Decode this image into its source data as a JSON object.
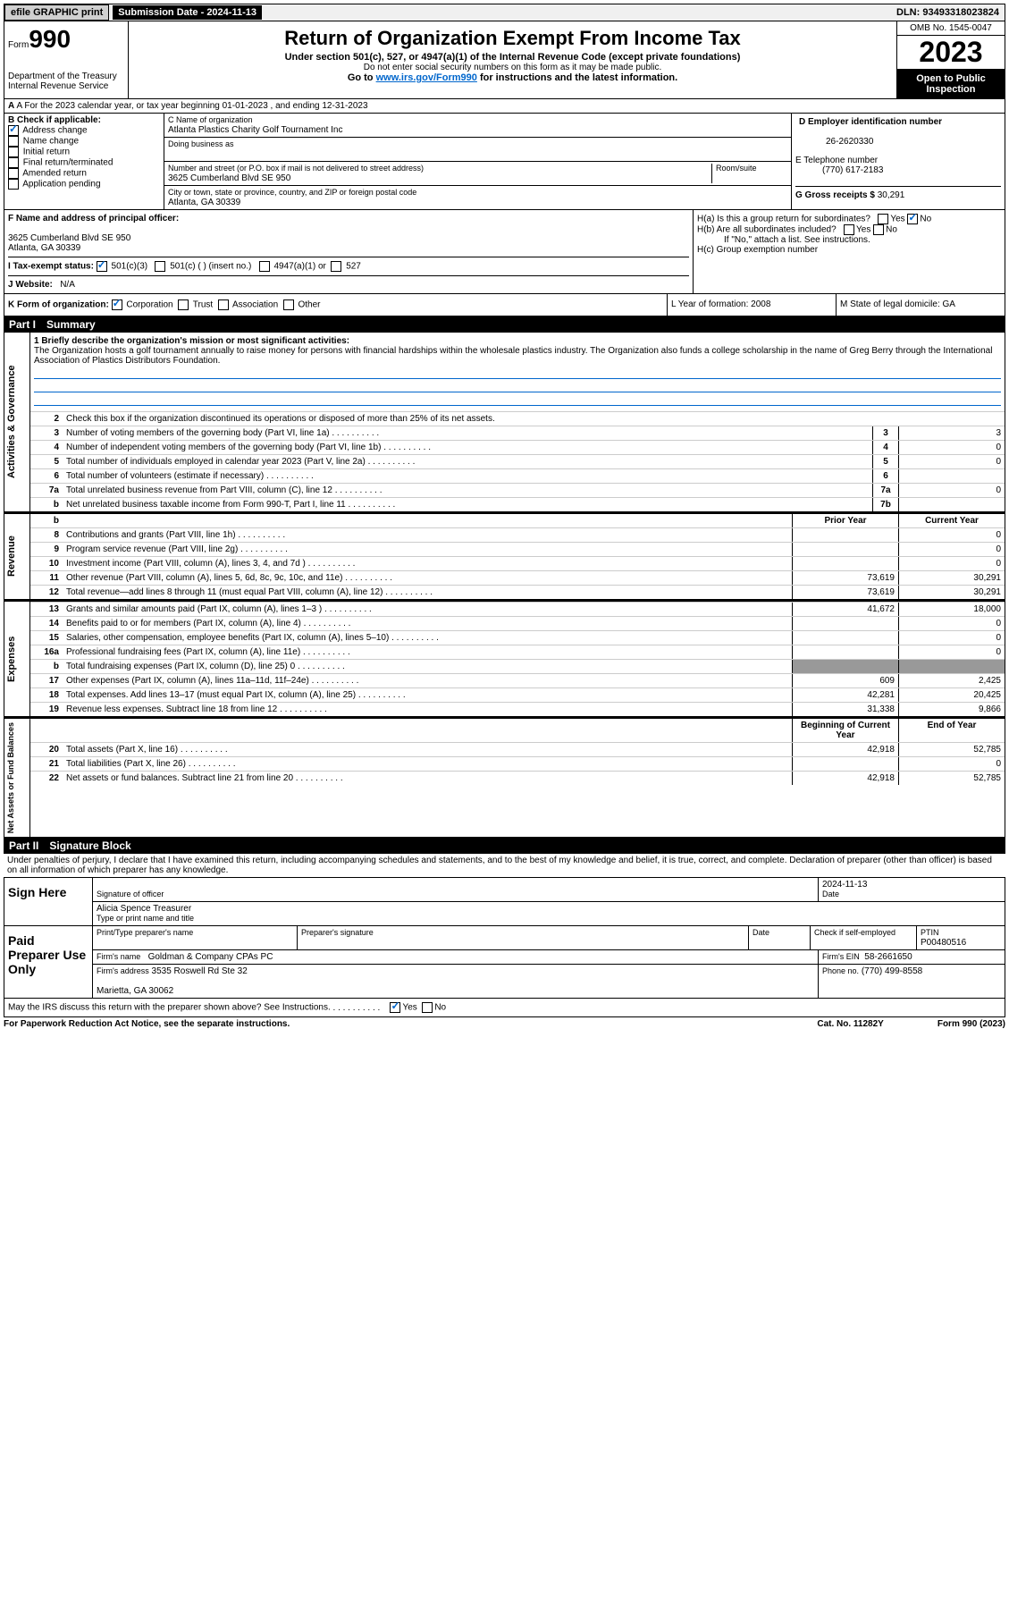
{
  "topbar": {
    "efile": "efile GRAPHIC print",
    "submission": "Submission Date - 2024-11-13",
    "dln": "DLN: 93493318023824"
  },
  "header": {
    "form_prefix": "Form",
    "form_num": "990",
    "title": "Return of Organization Exempt From Income Tax",
    "subtitle": "Under section 501(c), 527, or 4947(a)(1) of the Internal Revenue Code (except private foundations)",
    "note1": "Do not enter social security numbers on this form as it may be made public.",
    "note2": "Go to www.irs.gov/Form990 for instructions and the latest information.",
    "dept": "Department of the Treasury\nInternal Revenue Service",
    "omb": "OMB No. 1545-0047",
    "year": "2023",
    "inspection": "Open to Public Inspection"
  },
  "rowA": "A For the 2023 calendar year, or tax year beginning 01-01-2023   , and ending 12-31-2023",
  "secB": {
    "label": "B Check if applicable:",
    "items": [
      "Address change",
      "Name change",
      "Initial return",
      "Final return/terminated",
      "Amended return",
      "Application pending"
    ],
    "checked": [
      true,
      false,
      false,
      false,
      false,
      false
    ]
  },
  "secC": {
    "name_label": "C Name of organization",
    "name": "Atlanta Plastics Charity Golf Tournament Inc",
    "dba_label": "Doing business as",
    "addr_label": "Number and street (or P.O. box if mail is not delivered to street address)",
    "room_label": "Room/suite",
    "addr": "3625 Cumberland Blvd SE 950",
    "city_label": "City or town, state or province, country, and ZIP or foreign postal code",
    "city": "Atlanta, GA  30339"
  },
  "secD": {
    "ein_label": "D Employer identification number",
    "ein": "26-2620330",
    "phone_label": "E Telephone number",
    "phone": "(770) 617-2183",
    "gross_label": "G Gross receipts $",
    "gross": "30,291"
  },
  "secF": {
    "label": "F Name and address of principal officer:",
    "addr": "3625 Cumberland Blvd SE 950\nAtlanta, GA  30339"
  },
  "secH": {
    "ha": "H(a)  Is this a group return for subordinates?",
    "hb": "H(b)  Are all subordinates included?",
    "hb_note": "If \"No,\" attach a list. See instructions.",
    "hc": "H(c)  Group exemption number"
  },
  "secI": {
    "label": "I   Tax-exempt status:",
    "opts": [
      "501(c)(3)",
      "501(c) (  ) (insert no.)",
      "4947(a)(1) or",
      "527"
    ]
  },
  "secJ": {
    "label": "J   Website:",
    "val": "N/A"
  },
  "secK": {
    "label": "K Form of organization:",
    "opts": [
      "Corporation",
      "Trust",
      "Association",
      "Other"
    ],
    "L": "L Year of formation: 2008",
    "M": "M State of legal domicile: GA"
  },
  "part1": {
    "header": "Part I",
    "title": "Summary",
    "mission_label": "1   Briefly describe the organization's mission or most significant activities:",
    "mission": "The Organization hosts a golf tournament annually to raise money for persons with financial hardships within the wholesale plastics industry. The Organization also funds a college scholarship in the name of Greg Berry through the International Association of Plastics Distributors Foundation.",
    "line2": "Check this box     if the organization discontinued its operations or disposed of more than 25% of its net assets.",
    "lines_gov": [
      {
        "n": "3",
        "d": "Number of voting members of the governing body (Part VI, line 1a)",
        "b": "3",
        "v": "3"
      },
      {
        "n": "4",
        "d": "Number of independent voting members of the governing body (Part VI, line 1b)",
        "b": "4",
        "v": "0"
      },
      {
        "n": "5",
        "d": "Total number of individuals employed in calendar year 2023 (Part V, line 2a)",
        "b": "5",
        "v": "0"
      },
      {
        "n": "6",
        "d": "Total number of volunteers (estimate if necessary)",
        "b": "6",
        "v": ""
      },
      {
        "n": "7a",
        "d": "Total unrelated business revenue from Part VIII, column (C), line 12",
        "b": "7a",
        "v": "0"
      },
      {
        "n": "b",
        "d": "Net unrelated business taxable income from Form 990-T, Part I, line 11",
        "b": "7b",
        "v": ""
      }
    ],
    "col_prior": "Prior Year",
    "col_current": "Current Year",
    "lines_rev": [
      {
        "n": "8",
        "d": "Contributions and grants (Part VIII, line 1h)",
        "p": "",
        "c": "0"
      },
      {
        "n": "9",
        "d": "Program service revenue (Part VIII, line 2g)",
        "p": "",
        "c": "0"
      },
      {
        "n": "10",
        "d": "Investment income (Part VIII, column (A), lines 3, 4, and 7d )",
        "p": "",
        "c": "0"
      },
      {
        "n": "11",
        "d": "Other revenue (Part VIII, column (A), lines 5, 6d, 8c, 9c, 10c, and 11e)",
        "p": "73,619",
        "c": "30,291"
      },
      {
        "n": "12",
        "d": "Total revenue—add lines 8 through 11 (must equal Part VIII, column (A), line 12)",
        "p": "73,619",
        "c": "30,291"
      }
    ],
    "lines_exp": [
      {
        "n": "13",
        "d": "Grants and similar amounts paid (Part IX, column (A), lines 1–3 )",
        "p": "41,672",
        "c": "18,000"
      },
      {
        "n": "14",
        "d": "Benefits paid to or for members (Part IX, column (A), line 4)",
        "p": "",
        "c": "0"
      },
      {
        "n": "15",
        "d": "Salaries, other compensation, employee benefits (Part IX, column (A), lines 5–10)",
        "p": "",
        "c": "0"
      },
      {
        "n": "16a",
        "d": "Professional fundraising fees (Part IX, column (A), line 11e)",
        "p": "",
        "c": "0"
      },
      {
        "n": "b",
        "d": "Total fundraising expenses (Part IX, column (D), line 25) 0",
        "p": "shade",
        "c": "shade"
      },
      {
        "n": "17",
        "d": "Other expenses (Part IX, column (A), lines 11a–11d, 11f–24e)",
        "p": "609",
        "c": "2,425"
      },
      {
        "n": "18",
        "d": "Total expenses. Add lines 13–17 (must equal Part IX, column (A), line 25)",
        "p": "42,281",
        "c": "20,425"
      },
      {
        "n": "19",
        "d": "Revenue less expenses. Subtract line 18 from line 12",
        "p": "31,338",
        "c": "9,866"
      }
    ],
    "col_begin": "Beginning of Current Year",
    "col_end": "End of Year",
    "lines_net": [
      {
        "n": "20",
        "d": "Total assets (Part X, line 16)",
        "p": "42,918",
        "c": "52,785"
      },
      {
        "n": "21",
        "d": "Total liabilities (Part X, line 26)",
        "p": "",
        "c": "0"
      },
      {
        "n": "22",
        "d": "Net assets or fund balances. Subtract line 21 from line 20",
        "p": "42,918",
        "c": "52,785"
      }
    ],
    "vtab_gov": "Activities & Governance",
    "vtab_rev": "Revenue",
    "vtab_exp": "Expenses",
    "vtab_net": "Net Assets or Fund Balances"
  },
  "part2": {
    "header": "Part II",
    "title": "Signature Block",
    "declaration": "Under penalties of perjury, I declare that I have examined this return, including accompanying schedules and statements, and to the best of my knowledge and belief, it is true, correct, and complete. Declaration of preparer (other than officer) is based on all information of which preparer has any knowledge.",
    "sign_here": "Sign Here",
    "sig_officer": "Signature of officer",
    "sig_name": "Alicia Spence  Treasurer",
    "sig_type": "Type or print name and title",
    "sig_date_label": "Date",
    "sig_date": "2024-11-13",
    "paid": "Paid Preparer Use Only",
    "prep_name_label": "Print/Type preparer's name",
    "prep_sig_label": "Preparer's signature",
    "prep_date_label": "Date",
    "prep_check": "Check      if self-employed",
    "ptin_label": "PTIN",
    "ptin": "P00480516",
    "firm_name_label": "Firm's name",
    "firm_name": "Goldman & Company CPAs PC",
    "firm_ein_label": "Firm's EIN",
    "firm_ein": "58-2661650",
    "firm_addr_label": "Firm's address",
    "firm_addr": "3535 Roswell Rd Ste 32\n\nMarietta, GA  30062",
    "firm_phone_label": "Phone no.",
    "firm_phone": "(770) 499-8558",
    "discuss": "May the IRS discuss this return with the preparer shown above? See Instructions."
  },
  "footer": {
    "paperwork": "For Paperwork Reduction Act Notice, see the separate instructions.",
    "cat": "Cat. No. 11282Y",
    "form": "Form 990 (2023)"
  }
}
